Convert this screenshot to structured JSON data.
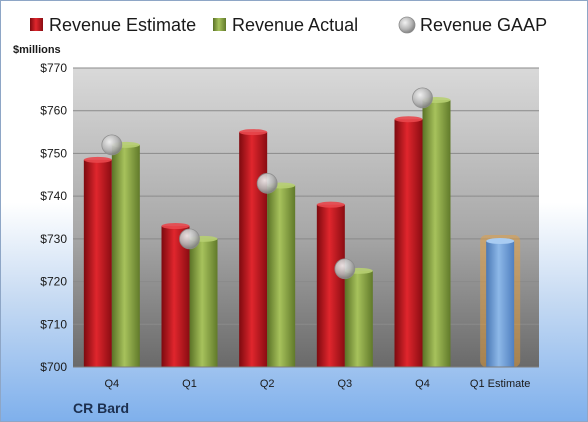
{
  "chart_data": {
    "type": "bar",
    "title": "",
    "ylabel": "$millions",
    "company": "CR Bard",
    "categories": [
      "Q4",
      "Q1",
      "Q2",
      "Q3",
      "Q4",
      "Q1 Estimate"
    ],
    "ylim": [
      700,
      770
    ],
    "yticks": [
      700,
      710,
      720,
      730,
      740,
      750,
      760,
      770
    ],
    "ytick_labels": [
      "$700",
      "$710",
      "$720",
      "$730",
      "$740",
      "$750",
      "$760",
      "$770"
    ],
    "grid": true,
    "legend_position": "top",
    "series": [
      {
        "name": "Revenue Estimate",
        "kind": "bar",
        "color": "#c0141c",
        "values": [
          748.5,
          733,
          755,
          738,
          758,
          null
        ]
      },
      {
        "name": "Revenue Actual",
        "kind": "bar",
        "color": "#8aa446",
        "values": [
          752,
          730,
          742.5,
          722.5,
          762.5,
          null
        ]
      },
      {
        "name": "Revenue GAAP",
        "kind": "marker",
        "color": "#b5b5b5",
        "values": [
          752,
          730,
          743,
          723,
          763,
          null
        ]
      }
    ],
    "estimate_bar": {
      "category": "Q1 Estimate",
      "value": 729.5,
      "color": "#6f9fd6",
      "highlight": "#f0a030"
    }
  }
}
